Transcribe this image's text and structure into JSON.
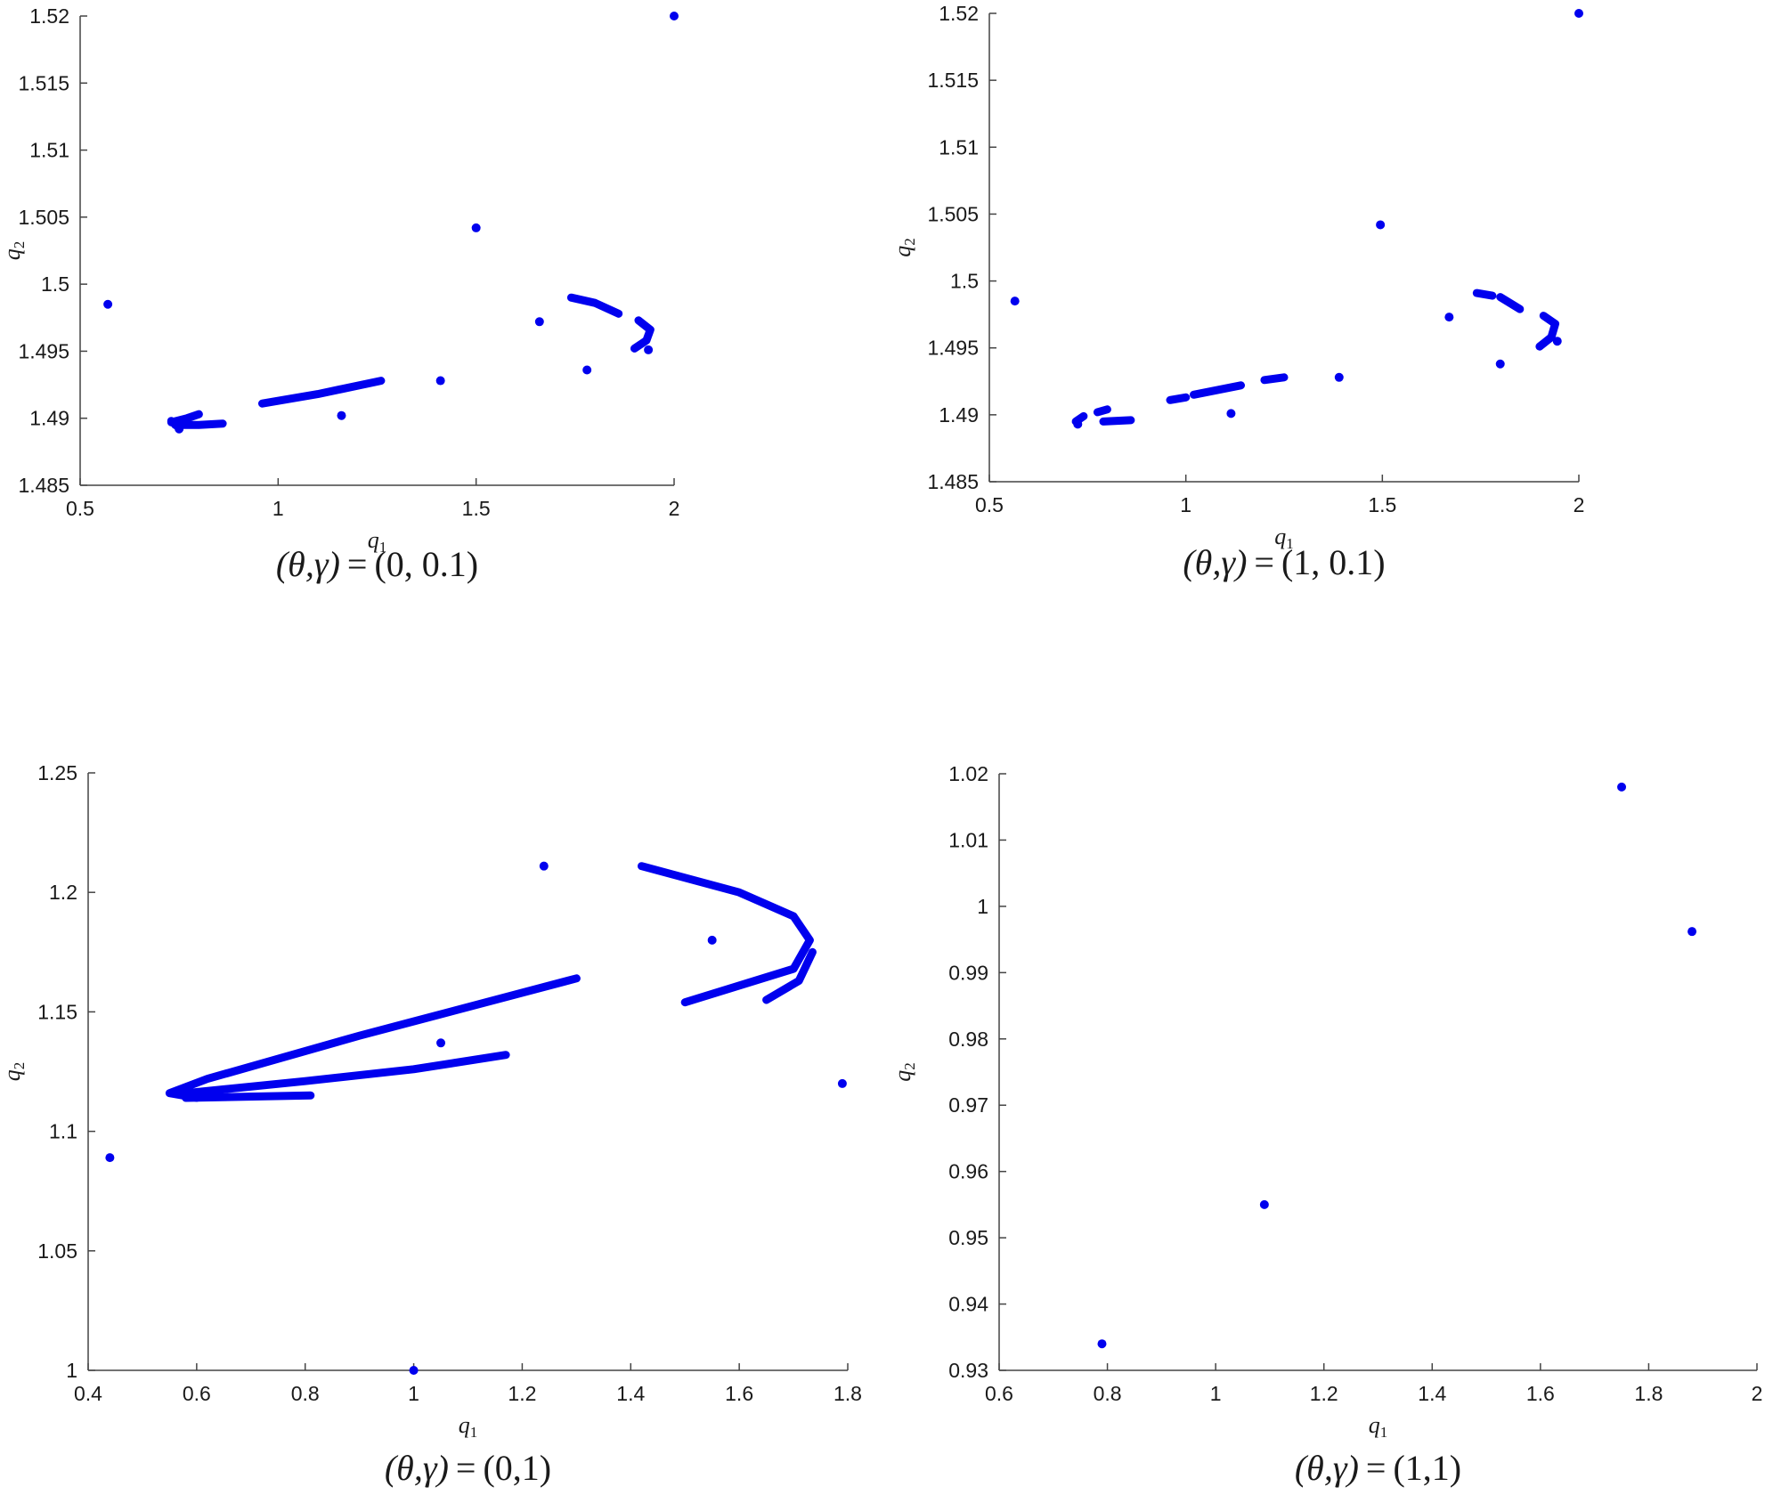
{
  "colors": {
    "marker": "#0000ee",
    "axis": "#444444",
    "text": "#1a1a1a"
  },
  "chart_data": [
    {
      "type": "scatter",
      "title": "(θ,γ) = (0, 0.1)",
      "caption_lhs": "(θ,γ)",
      "caption_eq": "=",
      "caption_rhs": "(0, 0.1)",
      "xlabel": "q",
      "xlabel_sub": "1",
      "ylabel": "q",
      "ylabel_sub": "2",
      "xlim": [
        0.5,
        2
      ],
      "ylim": [
        1.485,
        1.52
      ],
      "xticks": [
        0.5,
        1,
        1.5,
        2
      ],
      "xtick_labels": [
        "0.5",
        "1",
        "1.5",
        "2"
      ],
      "yticks": [
        1.485,
        1.49,
        1.495,
        1.5,
        1.505,
        1.51,
        1.515,
        1.52
      ],
      "ytick_labels": [
        "1.485",
        "1.49",
        "1.495",
        "1.5",
        "1.505",
        "1.51",
        "1.515",
        "1.52"
      ],
      "points": [
        [
          0.57,
          1.4985
        ],
        [
          1.5,
          1.5042
        ],
        [
          2.0,
          1.52
        ],
        [
          1.66,
          1.4972
        ],
        [
          1.78,
          1.4936
        ],
        [
          1.41,
          1.4928
        ],
        [
          1.16,
          1.4902
        ],
        [
          0.75,
          1.4892
        ],
        [
          1.935,
          1.4951
        ]
      ],
      "curves": [
        [
          [
            0.73,
            1.4897
          ],
          [
            0.77,
            1.49
          ],
          [
            0.8,
            1.4903
          ]
        ],
        [
          [
            0.74,
            1.4895
          ],
          [
            0.8,
            1.4895
          ],
          [
            0.86,
            1.4896
          ]
        ],
        [
          [
            0.73,
            1.4898
          ],
          [
            0.745,
            1.4894
          ]
        ],
        [
          [
            0.96,
            1.4911
          ],
          [
            1.1,
            1.4918
          ],
          [
            1.26,
            1.4928
          ]
        ],
        [
          [
            1.74,
            1.499
          ],
          [
            1.8,
            1.4986
          ],
          [
            1.86,
            1.4978
          ]
        ],
        [
          [
            1.91,
            1.4973
          ],
          [
            1.94,
            1.4966
          ],
          [
            1.93,
            1.4958
          ],
          [
            1.9,
            1.4952
          ]
        ]
      ]
    },
    {
      "type": "scatter",
      "title": "(θ,γ) = (1, 0.1)",
      "caption_lhs": "(θ,γ)",
      "caption_eq": "=",
      "caption_rhs": "(1, 0.1)",
      "xlabel": "q",
      "xlabel_sub": "1",
      "ylabel": "q",
      "ylabel_sub": "2",
      "xlim": [
        0.5,
        2
      ],
      "ylim": [
        1.485,
        1.52
      ],
      "xticks": [
        0.5,
        1,
        1.5,
        2
      ],
      "xtick_labels": [
        "0.5",
        "1",
        "1.5",
        "2"
      ],
      "yticks": [
        1.485,
        1.49,
        1.495,
        1.5,
        1.505,
        1.51,
        1.515,
        1.52
      ],
      "ytick_labels": [
        "1.485",
        "1.49",
        "1.495",
        "1.5",
        "1.505",
        "1.51",
        "1.515",
        "1.52"
      ],
      "points": [
        [
          0.565,
          1.4985
        ],
        [
          1.495,
          1.5042
        ],
        [
          2.0,
          1.52
        ],
        [
          1.67,
          1.4973
        ],
        [
          1.8,
          1.4938
        ],
        [
          1.39,
          1.4928
        ],
        [
          1.115,
          1.4901
        ],
        [
          0.725,
          1.4893
        ],
        [
          1.945,
          1.4955
        ]
      ],
      "curves": [
        [
          [
            0.72,
            1.4895
          ],
          [
            0.735,
            1.4898
          ],
          [
            0.74,
            1.4899
          ]
        ],
        [
          [
            0.775,
            1.4902
          ],
          [
            0.8,
            1.4904
          ]
        ],
        [
          [
            0.79,
            1.4895
          ],
          [
            0.86,
            1.4896
          ]
        ],
        [
          [
            0.96,
            1.4911
          ],
          [
            1.0,
            1.4913
          ]
        ],
        [
          [
            1.02,
            1.4915
          ],
          [
            1.14,
            1.4922
          ]
        ],
        [
          [
            1.2,
            1.4926
          ],
          [
            1.25,
            1.4928
          ]
        ],
        [
          [
            1.74,
            1.4991
          ],
          [
            1.78,
            1.4989
          ]
        ],
        [
          [
            1.8,
            1.4988
          ],
          [
            1.85,
            1.4979
          ]
        ],
        [
          [
            1.91,
            1.4974
          ],
          [
            1.94,
            1.4968
          ],
          [
            1.93,
            1.4958
          ],
          [
            1.9,
            1.4951
          ]
        ]
      ]
    },
    {
      "type": "scatter",
      "title": "(θ,γ) = (0,1)",
      "caption_lhs": "(θ,γ)",
      "caption_eq": "=",
      "caption_rhs": "(0,1)",
      "xlabel": "q",
      "xlabel_sub": "1",
      "ylabel": "q",
      "ylabel_sub": "2",
      "xlim": [
        0.4,
        1.8
      ],
      "ylim": [
        1.0,
        1.25
      ],
      "xticks": [
        0.4,
        0.6,
        0.8,
        1.0,
        1.2,
        1.4,
        1.6,
        1.8
      ],
      "xtick_labels": [
        "0.4",
        "0.6",
        "0.8",
        "1",
        "1.2",
        "1.4",
        "1.6",
        "1.8"
      ],
      "yticks": [
        1.0,
        1.05,
        1.1,
        1.15,
        1.2,
        1.25
      ],
      "ytick_labels": [
        "1",
        "1.05",
        "1.1",
        "1.15",
        "1.2",
        "1.25"
      ],
      "points": [
        [
          0.44,
          1.089
        ],
        [
          1.0,
          1.0
        ],
        [
          1.05,
          1.137
        ],
        [
          1.24,
          1.211
        ],
        [
          1.55,
          1.18
        ],
        [
          1.79,
          1.12
        ]
      ],
      "curves": [
        [
          [
            1.3,
            1.164
          ],
          [
            0.9,
            1.14
          ],
          [
            0.62,
            1.122
          ],
          [
            0.55,
            1.116
          ],
          [
            0.6,
            1.114
          ]
        ],
        [
          [
            0.58,
            1.116
          ],
          [
            0.8,
            1.121
          ],
          [
            1.0,
            1.126
          ],
          [
            1.17,
            1.132
          ]
        ],
        [
          [
            0.58,
            1.114
          ],
          [
            0.81,
            1.115
          ]
        ],
        [
          [
            1.42,
            1.211
          ],
          [
            1.6,
            1.2
          ],
          [
            1.7,
            1.19
          ],
          [
            1.73,
            1.18
          ],
          [
            1.7,
            1.168
          ],
          [
            1.5,
            1.154
          ]
        ],
        [
          [
            1.65,
            1.155
          ],
          [
            1.71,
            1.163
          ],
          [
            1.735,
            1.175
          ]
        ]
      ]
    },
    {
      "type": "scatter",
      "title": "(θ,γ) = (1,1)",
      "caption_lhs": "(θ,γ)",
      "caption_eq": "=",
      "caption_rhs": "(1,1)",
      "xlabel": "q",
      "xlabel_sub": "1",
      "ylabel": "q",
      "ylabel_sub": "2",
      "xlim": [
        0.6,
        2.0
      ],
      "ylim": [
        0.93,
        1.02
      ],
      "xticks": [
        0.6,
        0.8,
        1.0,
        1.2,
        1.4,
        1.6,
        1.8,
        2.0
      ],
      "xtick_labels": [
        "0.6",
        "0.8",
        "1",
        "1.2",
        "1.4",
        "1.6",
        "1.8",
        "2"
      ],
      "yticks": [
        0.93,
        0.94,
        0.95,
        0.96,
        0.97,
        0.98,
        0.99,
        1.0,
        1.01,
        1.02
      ],
      "ytick_labels": [
        "0.93",
        "0.94",
        "0.95",
        "0.96",
        "0.97",
        "0.98",
        "0.99",
        "1",
        "1.01",
        "1.02"
      ],
      "points": [
        [
          0.79,
          0.934
        ],
        [
          1.09,
          0.955
        ],
        [
          1.75,
          1.018
        ],
        [
          1.88,
          0.9962
        ]
      ],
      "curves": []
    }
  ]
}
